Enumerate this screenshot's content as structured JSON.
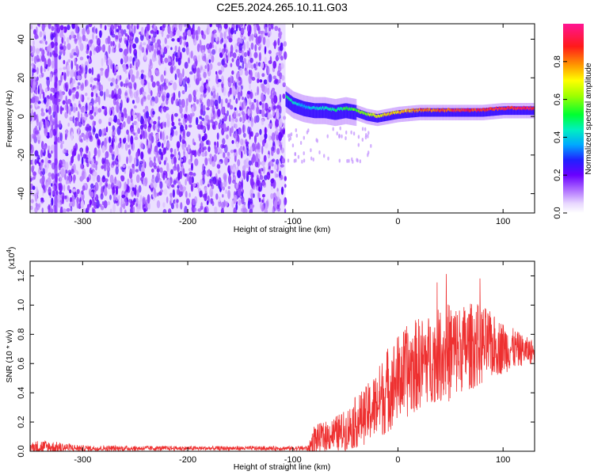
{
  "title": "C2E5.2024.265.10.11.G03",
  "colors": {
    "snr_line": "#ee3030",
    "colormap": [
      "#ffffff",
      "#c070ff",
      "#7a00e8",
      "#3a10ff",
      "#00b4ff",
      "#00ff40",
      "#ffff00",
      "#ff8000",
      "#ff1a1a",
      "#ff1493"
    ]
  },
  "chart_data": [
    {
      "type": "heatmap",
      "title": "C2E5.2024.265.10.11.G03",
      "xlabel": "Height of straight line (km)",
      "ylabel": "Frequency (Hz)",
      "xlim": [
        -350,
        130
      ],
      "ylim": [
        -50,
        48
      ],
      "x_ticks": [
        -300,
        -200,
        -100,
        0,
        100
      ],
      "y_ticks": [
        -40,
        -20,
        0,
        20,
        40
      ],
      "noise_region_x": [
        -350,
        -107
      ],
      "signal_ridge": {
        "x": [
          -107,
          -100,
          -90,
          -80,
          -70,
          -60,
          -50,
          -40,
          -30,
          -20,
          -10,
          0,
          20,
          40,
          60,
          80,
          100,
          130
        ],
        "freq": [
          9,
          6,
          4,
          3,
          3,
          2,
          3,
          2,
          0,
          -1,
          0,
          1,
          2,
          2,
          2,
          2,
          3,
          3
        ],
        "amplitude": [
          0.5,
          0.45,
          0.4,
          0.42,
          0.45,
          0.5,
          0.55,
          0.6,
          0.65,
          0.7,
          0.75,
          0.8,
          0.85,
          0.9,
          0.92,
          0.94,
          0.95,
          0.96
        ]
      },
      "colorbar": {
        "label": "Normalized spectral amplitude",
        "range": [
          0,
          1
        ],
        "ticks": [
          "0.0",
          "0.2",
          "0.4",
          "0.6",
          "0.8"
        ]
      }
    },
    {
      "type": "line",
      "xlabel": "Height of straight line (km)",
      "ylabel": "SNR (10 * v/v)",
      "scale_label": "(x10",
      "scale_exp": "4",
      "scale_close": ")",
      "xlim": [
        -350,
        130
      ],
      "ylim": [
        0,
        1.3
      ],
      "x_ticks": [
        -300,
        -200,
        -100,
        0,
        100
      ],
      "y_ticks": [
        "0.0",
        "0.2",
        "0.4",
        "0.6",
        "0.8",
        "1.0",
        "1.2"
      ],
      "series": [
        {
          "name": "SNR",
          "envelope_x": [
            -350,
            -340,
            -300,
            -200,
            -100,
            -85,
            -80,
            -70,
            -60,
            -50,
            -40,
            -30,
            -20,
            -10,
            0,
            10,
            20,
            30,
            40,
            50,
            60,
            70,
            80,
            90,
            100,
            110,
            120,
            130
          ],
          "envelope_mean": [
            0.03,
            0.03,
            0.02,
            0.02,
            0.02,
            0.02,
            0.08,
            0.1,
            0.12,
            0.14,
            0.2,
            0.25,
            0.32,
            0.42,
            0.5,
            0.55,
            0.6,
            0.63,
            0.66,
            0.68,
            0.7,
            0.72,
            0.73,
            0.72,
            0.71,
            0.7,
            0.69,
            0.68
          ],
          "envelope_spread": [
            0.03,
            0.05,
            0.02,
            0.015,
            0.015,
            0.02,
            0.1,
            0.1,
            0.12,
            0.14,
            0.18,
            0.2,
            0.24,
            0.3,
            0.3,
            0.32,
            0.32,
            0.3,
            0.32,
            0.35,
            0.3,
            0.3,
            0.28,
            0.22,
            0.18,
            0.14,
            0.1,
            0.08
          ],
          "peak_max": 1.27
        }
      ]
    }
  ]
}
